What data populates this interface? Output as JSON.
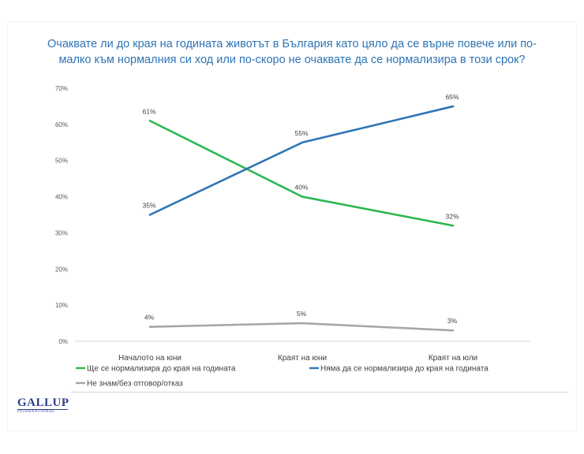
{
  "chart_data": {
    "type": "line",
    "title": "Очаквате ли до края на годината животът в България като цяло да се върне повече или по-малко към нормалния си ход или по-скоро не очаквате да се нормализира в този срок?",
    "categories": [
      "Началото на юни",
      "Краят на юни",
      "Краят на юли"
    ],
    "ylim": [
      0,
      70
    ],
    "yticks": [
      0,
      10,
      20,
      30,
      40,
      50,
      60,
      70
    ],
    "ytick_labels": [
      "0%",
      "10%",
      "20%",
      "30%",
      "40%",
      "50%",
      "60%",
      "70%"
    ],
    "grid": false,
    "legend_position": "bottom",
    "series": [
      {
        "name": "Ще се нормализира до края на годината",
        "color": "#2db84d",
        "values": [
          61,
          40,
          32
        ],
        "labels": [
          "61%",
          "40%",
          "32%"
        ]
      },
      {
        "name": "Няма да се нормализира до края на годината",
        "color": "#2e75b6",
        "values": [
          35,
          55,
          65
        ],
        "labels": [
          "35%",
          "55%",
          "65%"
        ]
      },
      {
        "name": "Не знам/без отговор/отказ",
        "color": "#a6a6a6",
        "values": [
          4,
          5,
          3
        ],
        "labels": [
          "4%",
          "5%",
          "3%"
        ]
      }
    ]
  },
  "logo": {
    "main": "GALLUP",
    "sub": "INTERNATIONAL"
  }
}
